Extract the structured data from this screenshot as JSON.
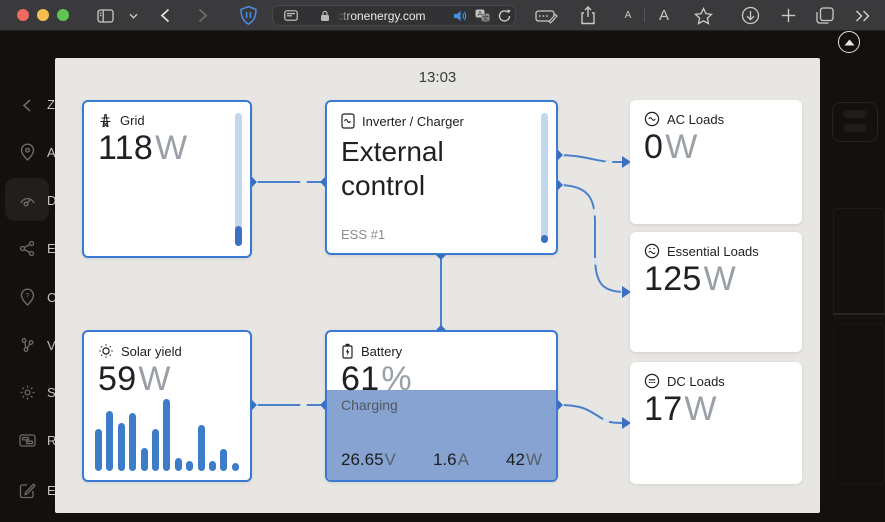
{
  "browser": {
    "url": "ctronenergy.com",
    "text_size_small": "A",
    "text_size_large": "A"
  },
  "sidebar": {
    "fragments": [
      "Z",
      "A",
      "D",
      "E",
      "C",
      "V",
      "S",
      "R",
      "E"
    ]
  },
  "overlay": {
    "time": "13:03"
  },
  "cards": {
    "grid": {
      "label": "Grid",
      "value": "118",
      "unit": "W",
      "gauge_percent": 15
    },
    "inverter": {
      "label": "Inverter / Charger",
      "value_line1": "External",
      "value_line2": "control",
      "sub": "ESS #1",
      "gauge_percent": 6
    },
    "ac_loads": {
      "label": "AC Loads",
      "value": "0",
      "unit": "W"
    },
    "essential_loads": {
      "label": "Essential Loads",
      "value": "125",
      "unit": "W"
    },
    "dc_loads": {
      "label": "DC Loads",
      "value": "17",
      "unit": "W"
    },
    "solar": {
      "label": "Solar yield",
      "value": "59",
      "unit": "W",
      "bars": [
        42,
        60,
        48,
        58,
        23,
        42,
        72,
        13,
        10,
        46,
        10,
        22,
        8
      ]
    },
    "battery": {
      "label": "Battery",
      "value": "61",
      "unit": "%",
      "state": "Charging",
      "soc_percent": 61,
      "voltage": "26.65",
      "voltage_unit": "V",
      "current": "1.6",
      "current_unit": "A",
      "power": "42",
      "power_unit": "W"
    }
  },
  "colors": {
    "accent_blue": "#3b6fc4",
    "link_blue": "#4a80cc",
    "battery_fill": "#87a3d2",
    "bar_blue": "#3d7cc9",
    "traffic_red": "#ed6a5e",
    "traffic_yellow": "#f4bf4f",
    "traffic_green": "#61c454"
  }
}
